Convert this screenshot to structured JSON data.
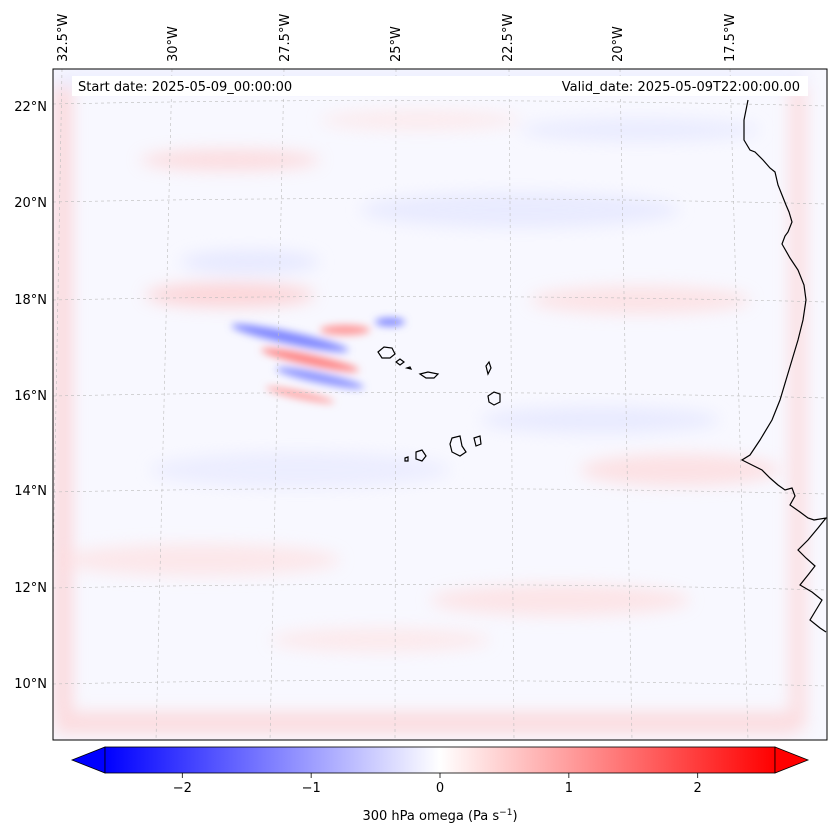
{
  "header": {
    "start_date": "Start date: 2025-05-09_00:00:00",
    "valid_date": "Valid_date: 2025-05-09T22:00:00.00"
  },
  "lon_labels": [
    "32.5°W",
    "30°W",
    "27.5°W",
    "25°W",
    "22.5°W",
    "20°W",
    "17.5°W"
  ],
  "lat_labels": [
    "22°N",
    "20°N",
    "18°N",
    "16°N",
    "14°N",
    "12°N",
    "10°N"
  ],
  "colorbar": {
    "label": "300 hPa omega (Pa s",
    "label_sup": "−1",
    "label_close": ")",
    "ticks": [
      "−2",
      "−1",
      "0",
      "1",
      "2"
    ],
    "tick_values": [
      -2,
      -1,
      0,
      1,
      2
    ],
    "range": [
      -2.6,
      2.6
    ],
    "extend": "both",
    "colormap": "bwr",
    "min_color": "#0000ff",
    "mid_color": "#ffffff",
    "max_color": "#ff0000"
  },
  "colors": {
    "coastline": "#000000",
    "gridline": "#bbbbbb",
    "frame": "#000000"
  }
}
